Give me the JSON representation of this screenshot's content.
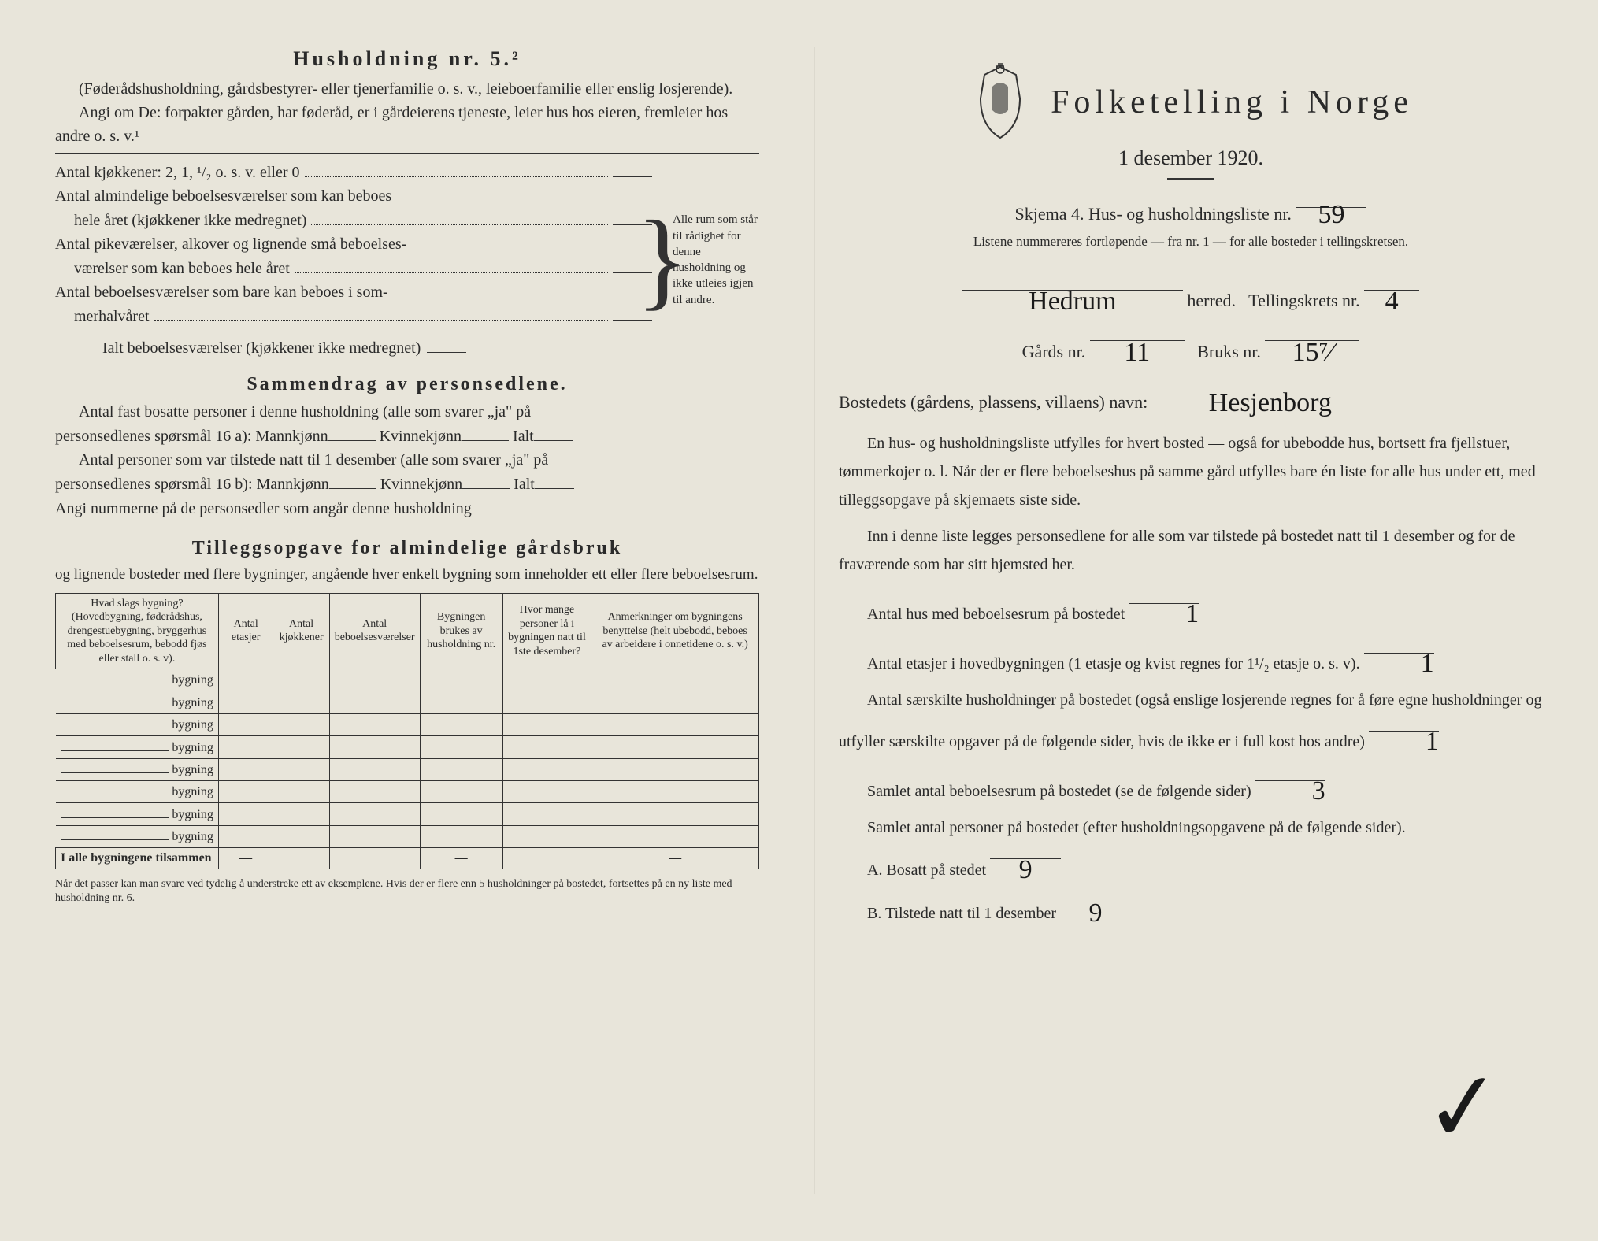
{
  "left": {
    "heading": "Husholdning nr. 5.²",
    "intro1": "(Føderådshusholdning, gårdsbestyrer- eller tjenerfamilie o. s. v., leieboerfamilie eller enslig losjerende).",
    "intro2": "Angi om De: forpakter gården, har føderåd, er i gårdeierens tjeneste, leier hus hos eieren, fremleier hos andre o. s. v.¹",
    "rooms": {
      "r1": "Antal kjøkkener: 2, 1, ¹/₂ o. s. v. eller 0",
      "r2a": "Antal almindelige beboelsesværelser som kan beboes",
      "r2b": "hele året (kjøkkener ikke medregnet)",
      "r3a": "Antal pikeværelser, alkover og lignende små beboelses-",
      "r3b": "værelser som kan beboes hele året",
      "r4a": "Antal beboelsesværelser som bare kan beboes i som-",
      "r4b": "merhalvåret",
      "r5": "Ialt beboelsesværelser (kjøkkener ikke medregnet)",
      "sideNote": "Alle rum som står til rådighet for denne husholdning og ikke utleies igjen til andre."
    },
    "sammen": {
      "title": "Sammendrag av personsedlene.",
      "line1a": "Antal fast bosatte personer i denne husholdning (alle som svarer „ja\" på",
      "line1b": "personsedlenes spørsmål 16 a): Mannkjønn",
      "kvinne": "Kvinnekjønn",
      "ialt": "Ialt",
      "line2a": "Antal personer som var tilstede natt til 1 desember (alle som svarer „ja\" på",
      "line2b": "personsedlenes spørsmål 16 b): Mannkjønn",
      "line3": "Angi nummerne på de personsedler som angår denne husholdning"
    },
    "tillegg": {
      "title": "Tilleggsopgave for almindelige gårdsbruk",
      "sub": "og lignende bosteder med flere bygninger, angående hver enkelt bygning som inneholder ett eller flere beboelsesrum.",
      "columns": [
        "Hvad slags bygning?\n(Hovedbygning, føderådshus, drengestuebygning, bryggerhus med beboelsesrum, bebodd fjøs eller stall o. s. v).",
        "Antal etasjer",
        "Antal kjøkkener",
        "Antal beboelsesværelser",
        "Bygningen brukes av husholdning nr.",
        "Hvor mange personer lå i bygningen natt til 1ste desember?",
        "Anmerkninger om bygningens benyttelse (helt ubebodd, beboes av arbeidere i onnetidene o. s. v.)"
      ],
      "rowLabel": "bygning",
      "totals": "I alle bygningene tilsammen",
      "footnote": "Når det passer kan man svare ved tydelig å understreke ett av eksemplene.\nHvis der er flere enn 5 husholdninger på bostedet, fortsettes på en ny liste med husholdning nr. 6."
    }
  },
  "right": {
    "mainTitle": "Folketelling i Norge",
    "subTitle": "1 desember 1920.",
    "skjemaLine": "Skjema 4.  Hus- og husholdningsliste nr.",
    "skjemaNr": "59",
    "listNote": "Listene nummereres fortløpende — fra nr. 1 — for alle bosteder i tellingskretsen.",
    "herred": "Hedrum",
    "herredLabel": "herred.",
    "tellingskrets": "Tellingskrets nr.",
    "tellingskretsNr": "4",
    "gardsLabel": "Gårds nr.",
    "gardsNr": "11",
    "bruksLabel": "Bruks nr.",
    "bruksNr": "15⁷⁄",
    "bostedLabel": "Bostedets (gårdens, plassens, villaens) navn:",
    "bostedName": "Hesjenborg",
    "para1": "En hus- og husholdningsliste utfylles for hvert bosted — også for ubebodde hus, bortsett fra fjellstuer, tømmerkojer o. l.  Når der er flere beboelseshus på samme gård utfylles bare én liste for alle hus under ett, med tilleggsopgave på skjemaets siste side.",
    "para2": "Inn i denne liste legges personsedlene for alle som var tilstede på bostedet natt til 1 desember og for de fraværende som har sitt hjemsted her.",
    "q1": "Antal hus med beboelsesrum på bostedet",
    "q1v": "1",
    "q2": "Antal etasjer i hovedbygningen (1 etasje og kvist regnes for 1¹/₂ etasje o. s. v).",
    "q2v": "1",
    "q3": "Antal særskilte husholdninger på bostedet (også enslige losjerende regnes for å føre egne husholdninger og utfyller særskilte opgaver på de følgende sider, hvis de ikke er i full kost hos andre)",
    "q3v": "1",
    "q4": "Samlet antal beboelsesrum på bostedet (se de følgende sider)",
    "q4v": "3",
    "q5": "Samlet antal personer på bostedet (efter husholdningsopgavene på de følgende sider).",
    "qA": "A.  Bosatt på stedet",
    "qAv": "9",
    "qB": "B.  Tilstede natt til 1 desember",
    "qBv": "9"
  },
  "colors": {
    "paper": "#e8e5da",
    "ink": "#2a2a2a",
    "handwriting": "#1a1a1a"
  }
}
